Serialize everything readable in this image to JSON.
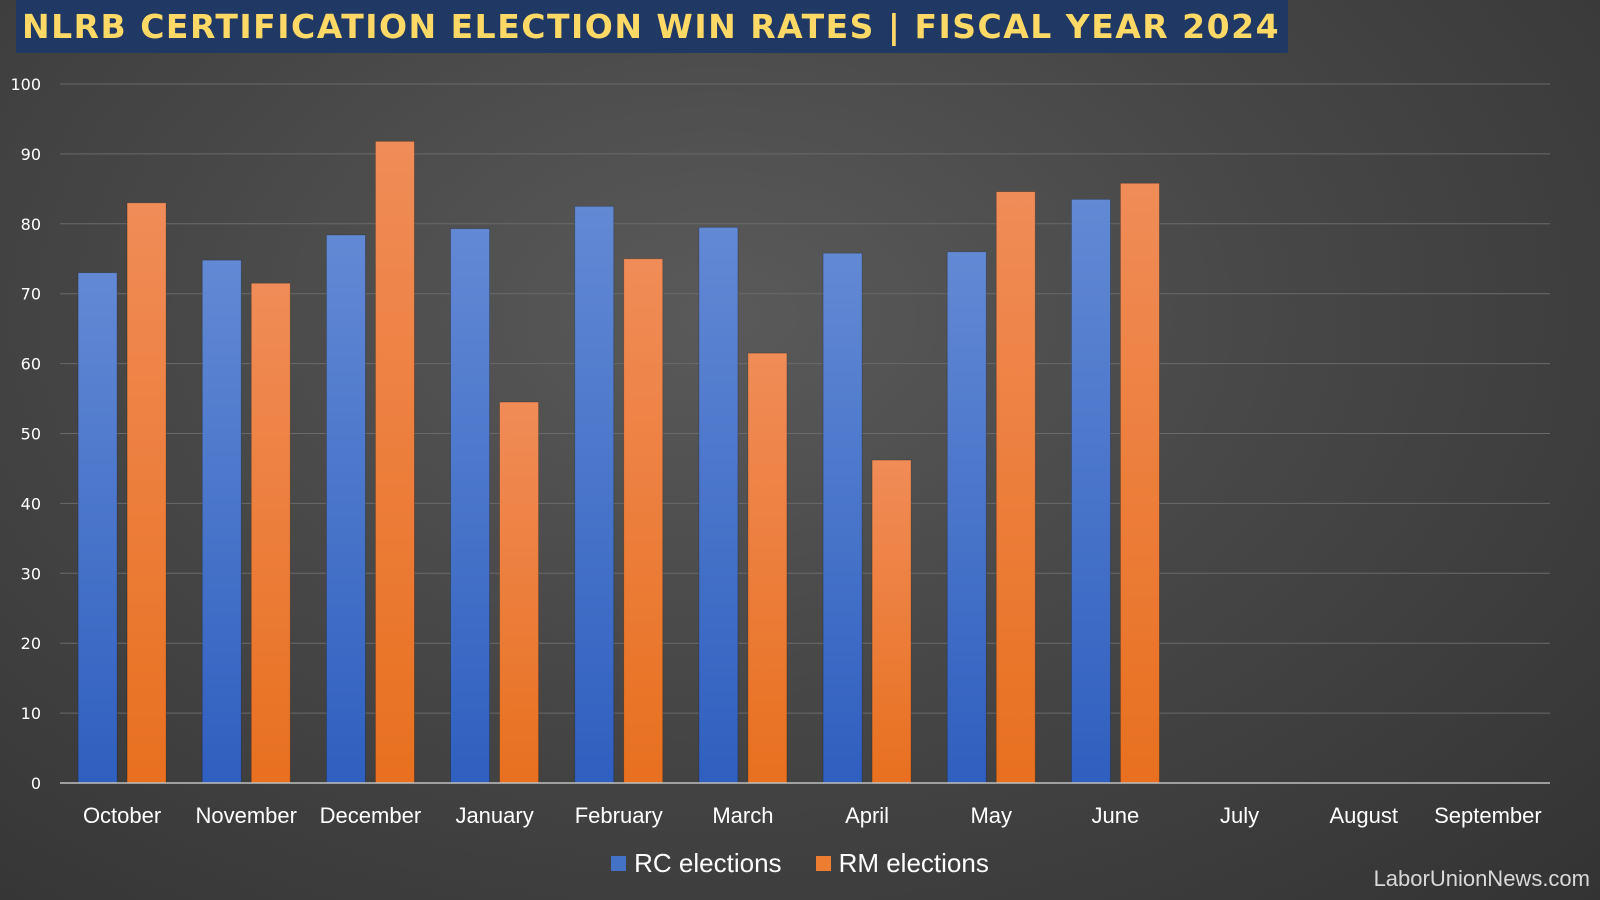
{
  "title": "NLRB CERTIFICATION ELECTION WIN RATES | FISCAL YEAR 2024",
  "watermark": "LaborUnionNews.com",
  "colors": {
    "rc": "#4472c4",
    "rm": "#ed7d31",
    "title_bg": "#1f3864",
    "title_text": "#ffd966"
  },
  "chart_data": {
    "type": "bar",
    "categories": [
      "October",
      "November",
      "December",
      "January",
      "February",
      "March",
      "April",
      "May",
      "June",
      "July",
      "August",
      "September"
    ],
    "series": [
      {
        "name": "RC elections",
        "values": [
          73,
          74.8,
          78.4,
          79.3,
          82.5,
          79.5,
          75.8,
          76,
          83.5,
          null,
          null,
          null
        ]
      },
      {
        "name": "RM elections",
        "values": [
          83,
          71.5,
          91.8,
          54.5,
          75,
          61.5,
          46.2,
          84.6,
          85.8,
          null,
          null,
          null
        ]
      }
    ],
    "ylim": [
      0,
      100
    ],
    "yticks": [
      0,
      10,
      20,
      30,
      40,
      50,
      60,
      70,
      80,
      90,
      100
    ],
    "grid": true,
    "legend_position": "bottom-center"
  }
}
